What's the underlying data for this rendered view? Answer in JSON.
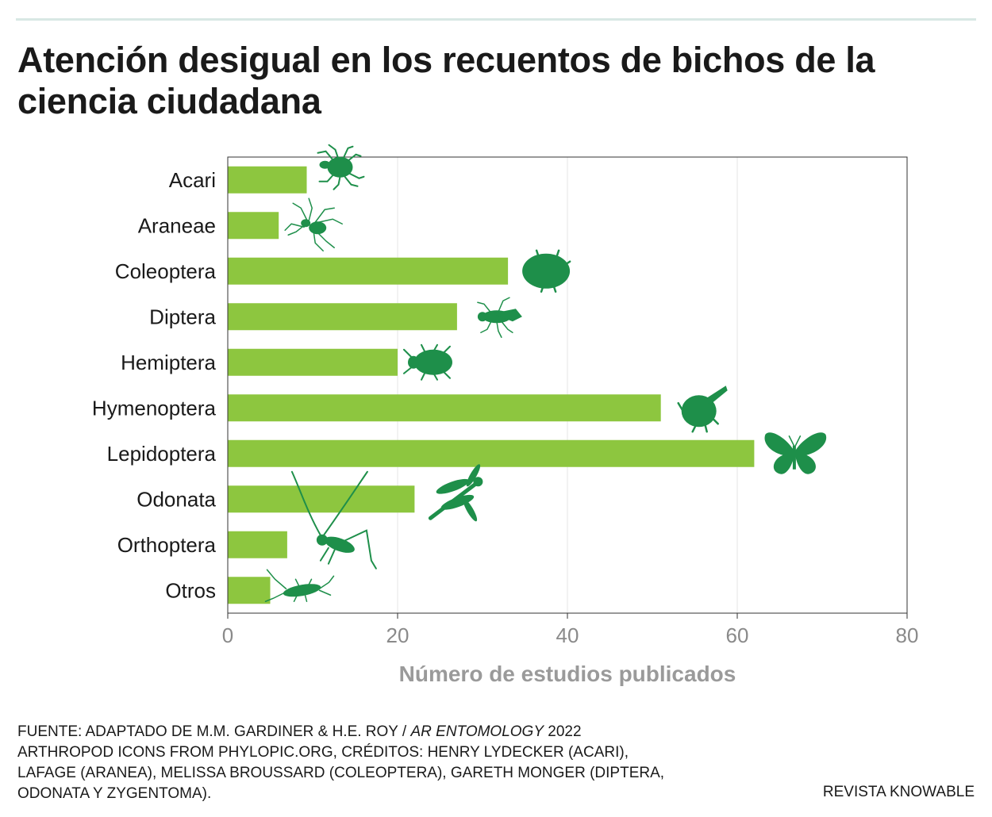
{
  "title": "Atención desigual en los recuentos de bichos de la ciencia ciudadana",
  "chart_data": {
    "type": "bar",
    "orientation": "horizontal",
    "categories": [
      "Acari",
      "Araneae",
      "Coleoptera",
      "Diptera",
      "Hemiptera",
      "Hymenoptera",
      "Lepidoptera",
      "Odonata",
      "Orthoptera",
      "Otros"
    ],
    "values": [
      9.3,
      6,
      33,
      27,
      20,
      51,
      62,
      22,
      7,
      5
    ],
    "xlabel": "Número de estudios publicados",
    "ylabel": "",
    "xlim": [
      0,
      80
    ],
    "xticks": [
      "0",
      "20",
      "40",
      "60",
      "80"
    ],
    "grid": "vertical",
    "bar_color": "#8dc63f",
    "grid_color": "#e6e6e6",
    "icon_color": "#1e8f4a",
    "icons": [
      "tick-icon",
      "spider-icon",
      "beetle-icon",
      "fly-icon",
      "bug-icon",
      "bee-icon",
      "butterfly-icon",
      "dragonfly-icon",
      "grasshopper-icon",
      "silverfish-icon"
    ]
  },
  "footer": {
    "source_prefix": "FUENTE: ADAPTADO DE M.M. GARDINER & H.E. ROY / ",
    "source_journal": "AR ENTOMOLOGY",
    "source_year": " 2022",
    "line2": "ARTHROPOD ICONS FROM PHYLOPIC.ORG, CRÉDITOS: HENRY LYDECKER (ACARI),",
    "line3": "LAFAGE (ARANEA), MELISSA BROUSSARD (COLEOPTERA), GARETH MONGER (DIPTERA,",
    "line4": "ODONATA Y ZYGENTOMA).",
    "brand": "REVISTA KNOWABLE"
  }
}
